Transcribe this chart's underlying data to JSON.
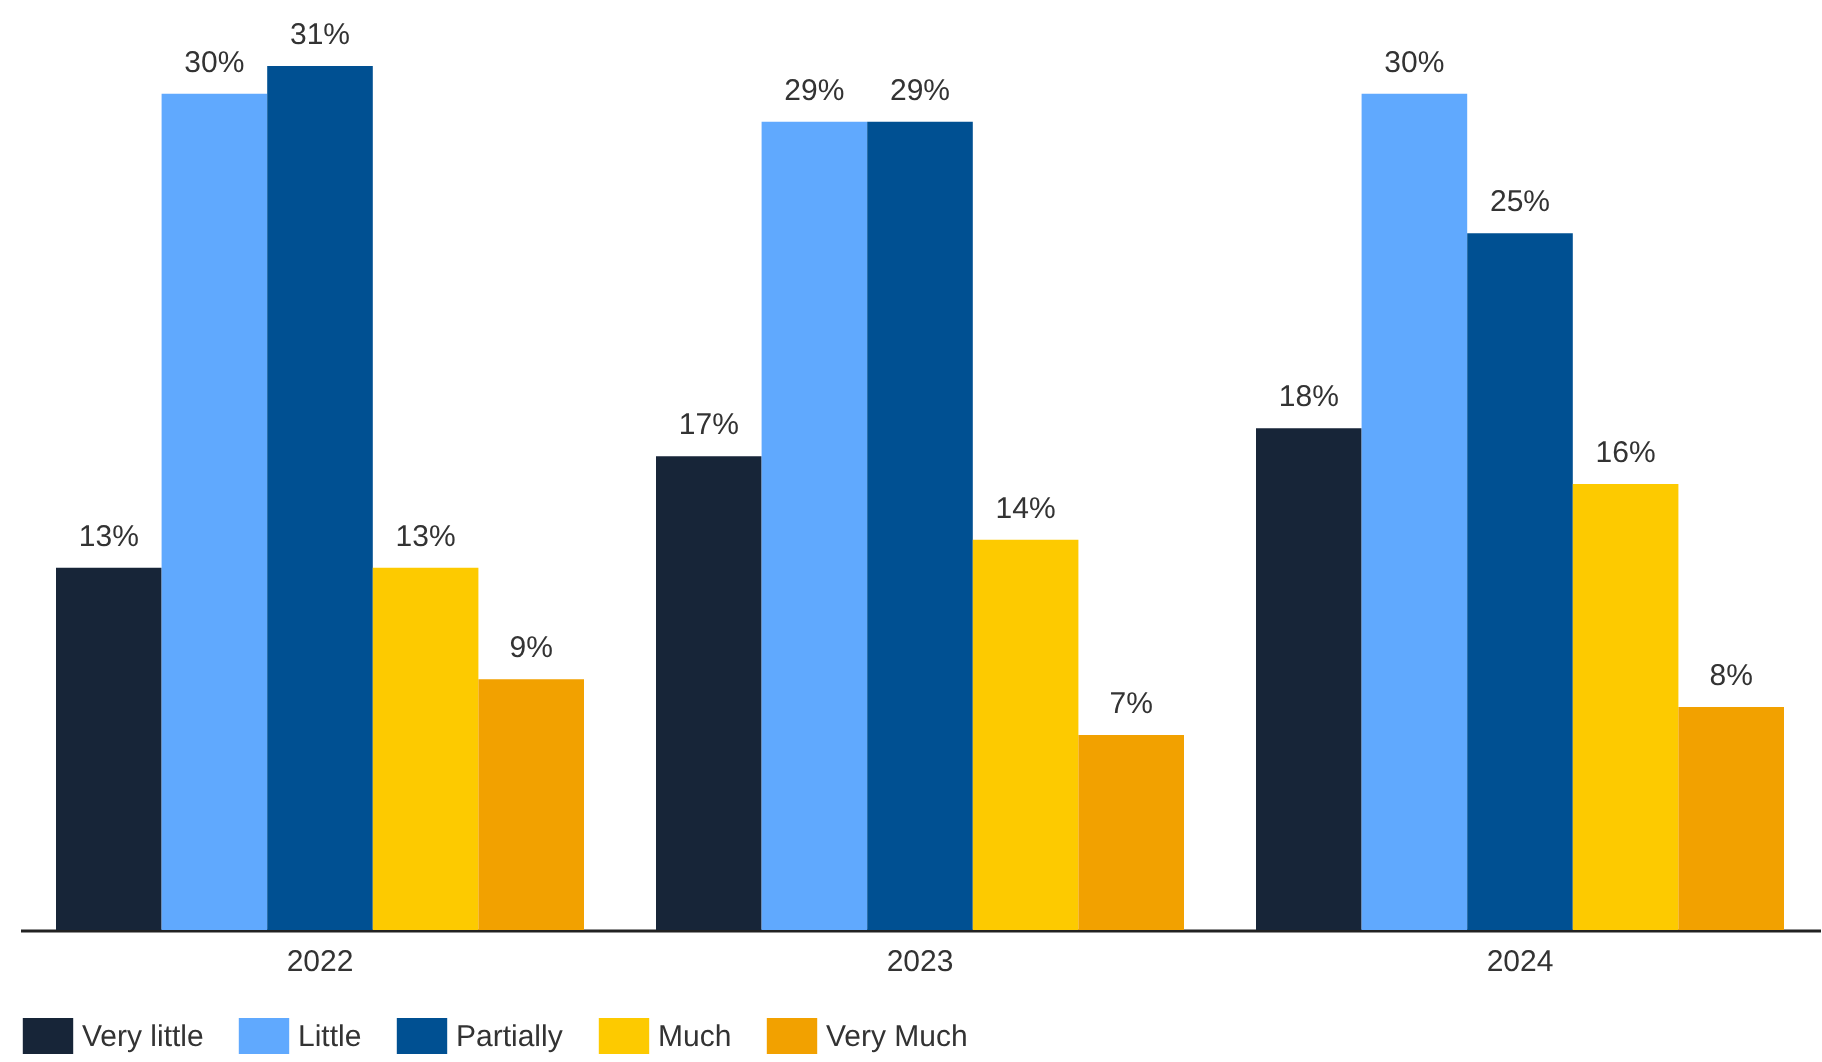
{
  "chart_data": {
    "type": "bar",
    "categories": [
      "2022",
      "2023",
      "2024"
    ],
    "series": [
      {
        "name": "Very little",
        "color": "#172538",
        "values": [
          13,
          17,
          18
        ],
        "value_labels": [
          "13%",
          "17%",
          "18%"
        ]
      },
      {
        "name": "Little",
        "color": "#60a9fe",
        "values": [
          30,
          29,
          30
        ],
        "value_labels": [
          "30%",
          "29%",
          "30%"
        ]
      },
      {
        "name": "Partially",
        "color": "#005092",
        "values": [
          31,
          29,
          25
        ],
        "value_labels": [
          "31%",
          "29%",
          "25%"
        ]
      },
      {
        "name": "Much",
        "color": "#fdca00",
        "values": [
          13,
          14,
          16
        ],
        "value_labels": [
          "13%",
          "14%",
          "16%"
        ]
      },
      {
        "name": "Very Much",
        "color": "#f2a100",
        "values": [
          9,
          7,
          8
        ],
        "value_labels": [
          "9%",
          "7%",
          "8%"
        ]
      }
    ],
    "legend": "bottom"
  }
}
